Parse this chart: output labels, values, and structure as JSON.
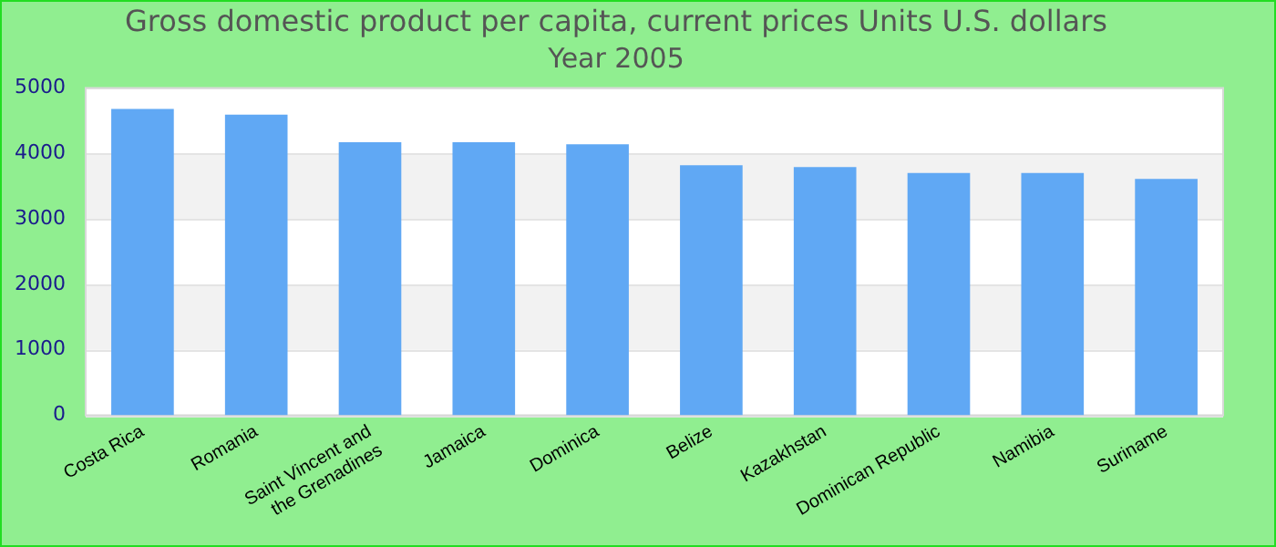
{
  "chart_data": {
    "type": "bar",
    "title": "Gross domestic product per capita, current prices Units U.S. dollars",
    "subtitle": "Year 2005",
    "categories": [
      "Costa Rica",
      "Romania",
      "Saint Vincent and the Grenadines",
      "Jamaica",
      "Dominica",
      "Belize",
      "Kazakhstan",
      "Dominican Republic",
      "Namibia",
      "Suriname"
    ],
    "values": [
      4680,
      4590,
      4170,
      4170,
      4140,
      3820,
      3790,
      3700,
      3700,
      3610
    ],
    "color": "#60a8f4",
    "ylim": [
      0,
      5000
    ],
    "yticks": [
      0,
      1000,
      2000,
      3000,
      4000,
      5000
    ],
    "grid": "y",
    "legend": false
  }
}
